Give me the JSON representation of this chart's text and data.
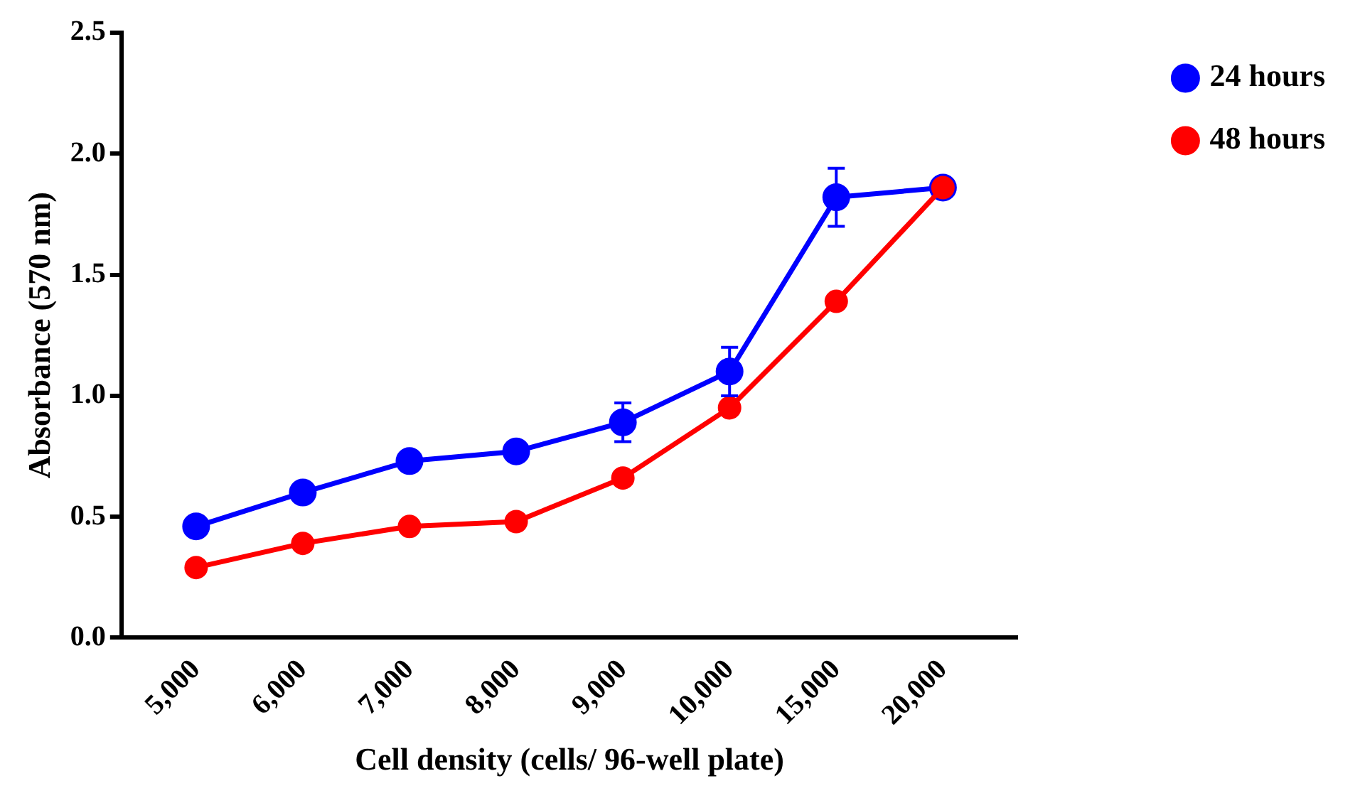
{
  "chart_data": {
    "type": "line",
    "xlabel": "Cell density (cells/ 96-well plate)",
    "ylabel": "Absorbance (570 nm)",
    "categories": [
      "5,000",
      "6,000",
      "7,000",
      "8,000",
      "9,000",
      "10,000",
      "15,000",
      "20,000"
    ],
    "series": [
      {
        "name": "24 hours",
        "color": "#0000ff",
        "values": [
          0.46,
          0.6,
          0.73,
          0.77,
          0.89,
          1.1,
          1.82,
          1.86
        ],
        "errors": [
          null,
          null,
          null,
          null,
          0.08,
          0.1,
          0.12,
          null
        ]
      },
      {
        "name": "48 hours",
        "color": "#ff0000",
        "values": [
          0.29,
          0.39,
          0.46,
          0.48,
          0.66,
          0.95,
          1.39,
          1.86
        ]
      }
    ],
    "ylim": [
      0,
      2.5
    ],
    "yticks": [
      {
        "value": 0,
        "label": "0.0"
      },
      {
        "value": 0.5,
        "label": "0.5"
      },
      {
        "value": 1,
        "label": "1.0"
      },
      {
        "value": 1.5,
        "label": "1.5"
      },
      {
        "value": 2,
        "label": "2.0"
      },
      {
        "value": 2.5,
        "label": "2.5"
      }
    ],
    "grid": false,
    "legend": "top right",
    "marker": "circle",
    "line_style": "solid"
  }
}
